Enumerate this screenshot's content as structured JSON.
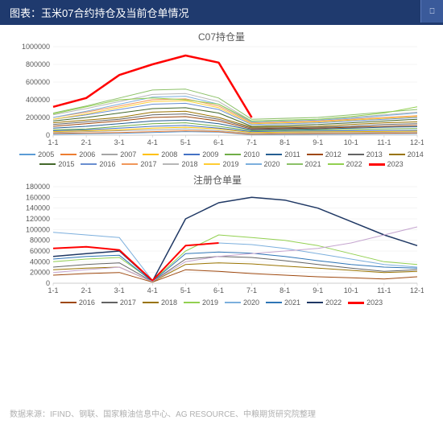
{
  "header": {
    "title": "图表：玉米07合约持仓及当前仓单情况",
    "logo_text": "⎕"
  },
  "footer": {
    "source": "数据来源：IFIND、钢联、国家粮油信息中心、AG RESOURCE、中粮期货研究院整理"
  },
  "chart1": {
    "title": "C07持仓量",
    "type": "line",
    "background_color": "#ffffff",
    "grid_color": "#e8e8e8",
    "title_fontsize": 12,
    "label_fontsize": 9,
    "x_ticks": [
      "1-1",
      "2-1",
      "3-1",
      "4-1",
      "5-1",
      "6-1",
      "7-1",
      "8-1",
      "9-1",
      "10-1",
      "11-1",
      "12-1"
    ],
    "ylim": [
      0,
      1000000
    ],
    "ytick_step": 200000,
    "y_ticks": [
      "0",
      "200000",
      "400000",
      "600000",
      "800000",
      "1000000"
    ],
    "series": [
      {
        "name": "2005",
        "color": "#5b9bd5",
        "width": 1,
        "data": [
          10000,
          15000,
          20000,
          30000,
          40000,
          35000,
          5000,
          8000,
          10000,
          12000,
          15000,
          18000
        ]
      },
      {
        "name": "2006",
        "color": "#ed7d31",
        "width": 1,
        "data": [
          20000,
          25000,
          30000,
          40000,
          50000,
          40000,
          10000,
          15000,
          18000,
          20000,
          22000,
          25000
        ]
      },
      {
        "name": "2007",
        "color": "#a5a5a5",
        "width": 1,
        "data": [
          30000,
          40000,
          50000,
          60000,
          70000,
          50000,
          20000,
          25000,
          28000,
          30000,
          32000,
          35000
        ]
      },
      {
        "name": "2008",
        "color": "#ffc000",
        "width": 1,
        "data": [
          40000,
          50000,
          60000,
          80000,
          90000,
          70000,
          30000,
          35000,
          38000,
          40000,
          42000,
          45000
        ]
      },
      {
        "name": "2009",
        "color": "#4472c4",
        "width": 1,
        "data": [
          50000,
          60000,
          80000,
          100000,
          110000,
          80000,
          40000,
          45000,
          48000,
          50000,
          52000,
          55000
        ]
      },
      {
        "name": "2010",
        "color": "#70ad47",
        "width": 1,
        "data": [
          60000,
          70000,
          100000,
          130000,
          140000,
          100000,
          50000,
          55000,
          60000,
          65000,
          70000,
          75000
        ]
      },
      {
        "name": "2011",
        "color": "#255e91",
        "width": 1,
        "data": [
          80000,
          100000,
          130000,
          160000,
          170000,
          130000,
          60000,
          65000,
          70000,
          80000,
          90000,
          95000
        ]
      },
      {
        "name": "2012",
        "color": "#9e480e",
        "width": 1,
        "data": [
          100000,
          130000,
          160000,
          200000,
          210000,
          160000,
          70000,
          75000,
          80000,
          90000,
          100000,
          110000
        ]
      },
      {
        "name": "2013",
        "color": "#636363",
        "width": 1,
        "data": [
          120000,
          150000,
          180000,
          230000,
          240000,
          180000,
          80000,
          85000,
          90000,
          100000,
          120000,
          130000
        ]
      },
      {
        "name": "2014",
        "color": "#997300",
        "width": 1,
        "data": [
          140000,
          170000,
          200000,
          260000,
          270000,
          200000,
          90000,
          95000,
          100000,
          120000,
          140000,
          150000
        ]
      },
      {
        "name": "2015",
        "color": "#43682b",
        "width": 1,
        "data": [
          160000,
          200000,
          250000,
          300000,
          310000,
          250000,
          100000,
          110000,
          120000,
          140000,
          160000,
          180000
        ]
      },
      {
        "name": "2016",
        "color": "#698ed0",
        "width": 1,
        "data": [
          180000,
          230000,
          290000,
          350000,
          360000,
          290000,
          120000,
          130000,
          140000,
          160000,
          180000,
          200000
        ]
      },
      {
        "name": "2017",
        "color": "#f1975a",
        "width": 1,
        "data": [
          200000,
          260000,
          330000,
          400000,
          410000,
          330000,
          140000,
          150000,
          160000,
          180000,
          200000,
          220000
        ]
      },
      {
        "name": "2018",
        "color": "#b7b7b7",
        "width": 1,
        "data": [
          230000,
          300000,
          380000,
          460000,
          470000,
          380000,
          160000,
          170000,
          180000,
          200000,
          230000,
          260000
        ]
      },
      {
        "name": "2019",
        "color": "#ffcd33",
        "width": 1,
        "data": [
          180000,
          240000,
          310000,
          380000,
          390000,
          310000,
          130000,
          140000,
          150000,
          170000,
          190000,
          210000
        ]
      },
      {
        "name": "2020",
        "color": "#7cafdd",
        "width": 1,
        "data": [
          200000,
          270000,
          350000,
          430000,
          440000,
          350000,
          150000,
          160000,
          170000,
          190000,
          220000,
          250000
        ]
      },
      {
        "name": "2021",
        "color": "#8cc168",
        "width": 1,
        "data": [
          250000,
          330000,
          420000,
          510000,
          520000,
          420000,
          180000,
          190000,
          200000,
          230000,
          260000,
          290000
        ]
      },
      {
        "name": "2022",
        "color": "#92d050",
        "width": 1,
        "data": [
          240000,
          320000,
          400000,
          420000,
          400000,
          350000,
          160000,
          170000,
          180000,
          210000,
          250000,
          320000
        ]
      },
      {
        "name": "2023",
        "color": "#ff0000",
        "width": 2.5,
        "data": [
          320000,
          420000,
          680000,
          800000,
          900000,
          820000,
          200000,
          null,
          null,
          null,
          null,
          null
        ]
      }
    ]
  },
  "chart2": {
    "title": "注册仓单量",
    "type": "line",
    "background_color": "#ffffff",
    "grid_color": "#e8e8e8",
    "title_fontsize": 12,
    "label_fontsize": 9,
    "x_ticks": [
      "1-1",
      "2-1",
      "3-1",
      "4-1",
      "5-1",
      "6-1",
      "7-1",
      "8-1",
      "9-1",
      "10-1",
      "11-1",
      "12-1"
    ],
    "ylim": [
      0,
      180000
    ],
    "ytick_step": 20000,
    "y_ticks": [
      "0",
      "20000",
      "40000",
      "60000",
      "80000",
      "100000",
      "120000",
      "140000",
      "160000",
      "180000"
    ],
    "series": [
      {
        "name": "2016",
        "color": "#9e480e",
        "width": 1,
        "data": [
          15000,
          18000,
          20000,
          2000,
          25000,
          22000,
          18000,
          15000,
          12000,
          10000,
          8000,
          12000
        ]
      },
      {
        "name": "2017",
        "color": "#636363",
        "width": 1,
        "data": [
          30000,
          35000,
          38000,
          3000,
          45000,
          50000,
          48000,
          42000,
          35000,
          28000,
          22000,
          25000
        ]
      },
      {
        "name": "2018",
        "color": "#997300",
        "width": 1,
        "data": [
          25000,
          28000,
          30000,
          2500,
          35000,
          38000,
          36000,
          32000,
          28000,
          24000,
          20000,
          22000
        ]
      },
      {
        "name": "2019",
        "color": "#92d050",
        "width": 1,
        "data": [
          40000,
          45000,
          48000,
          4000,
          60000,
          90000,
          85000,
          80000,
          70000,
          55000,
          40000,
          35000
        ]
      },
      {
        "name": "2020",
        "color": "#7cafdd",
        "width": 1,
        "data": [
          95000,
          90000,
          85000,
          5000,
          70000,
          75000,
          72000,
          65000,
          55000,
          45000,
          35000,
          30000
        ]
      },
      {
        "name": "2021",
        "color": "#2e75b6",
        "width": 1,
        "data": [
          45000,
          50000,
          52000,
          3000,
          55000,
          58000,
          56000,
          50000,
          42000,
          35000,
          30000,
          28000
        ]
      },
      {
        "name": "2022",
        "color": "#1f3864",
        "width": 1.5,
        "data": [
          50000,
          55000,
          60000,
          4000,
          120000,
          150000,
          160000,
          155000,
          140000,
          115000,
          90000,
          70000
        ]
      },
      {
        "name": "2023",
        "color": "#ff0000",
        "width": 2,
        "data": [
          65000,
          68000,
          62000,
          5000,
          70000,
          75000,
          null,
          null,
          null,
          null,
          null,
          null
        ]
      },
      {
        "name": "2020b",
        "color": "#c5a5cf",
        "width": 1,
        "data": [
          20000,
          25000,
          30000,
          3000,
          40000,
          50000,
          55000,
          60000,
          65000,
          75000,
          90000,
          105000
        ],
        "hide_legend": true
      }
    ]
  }
}
